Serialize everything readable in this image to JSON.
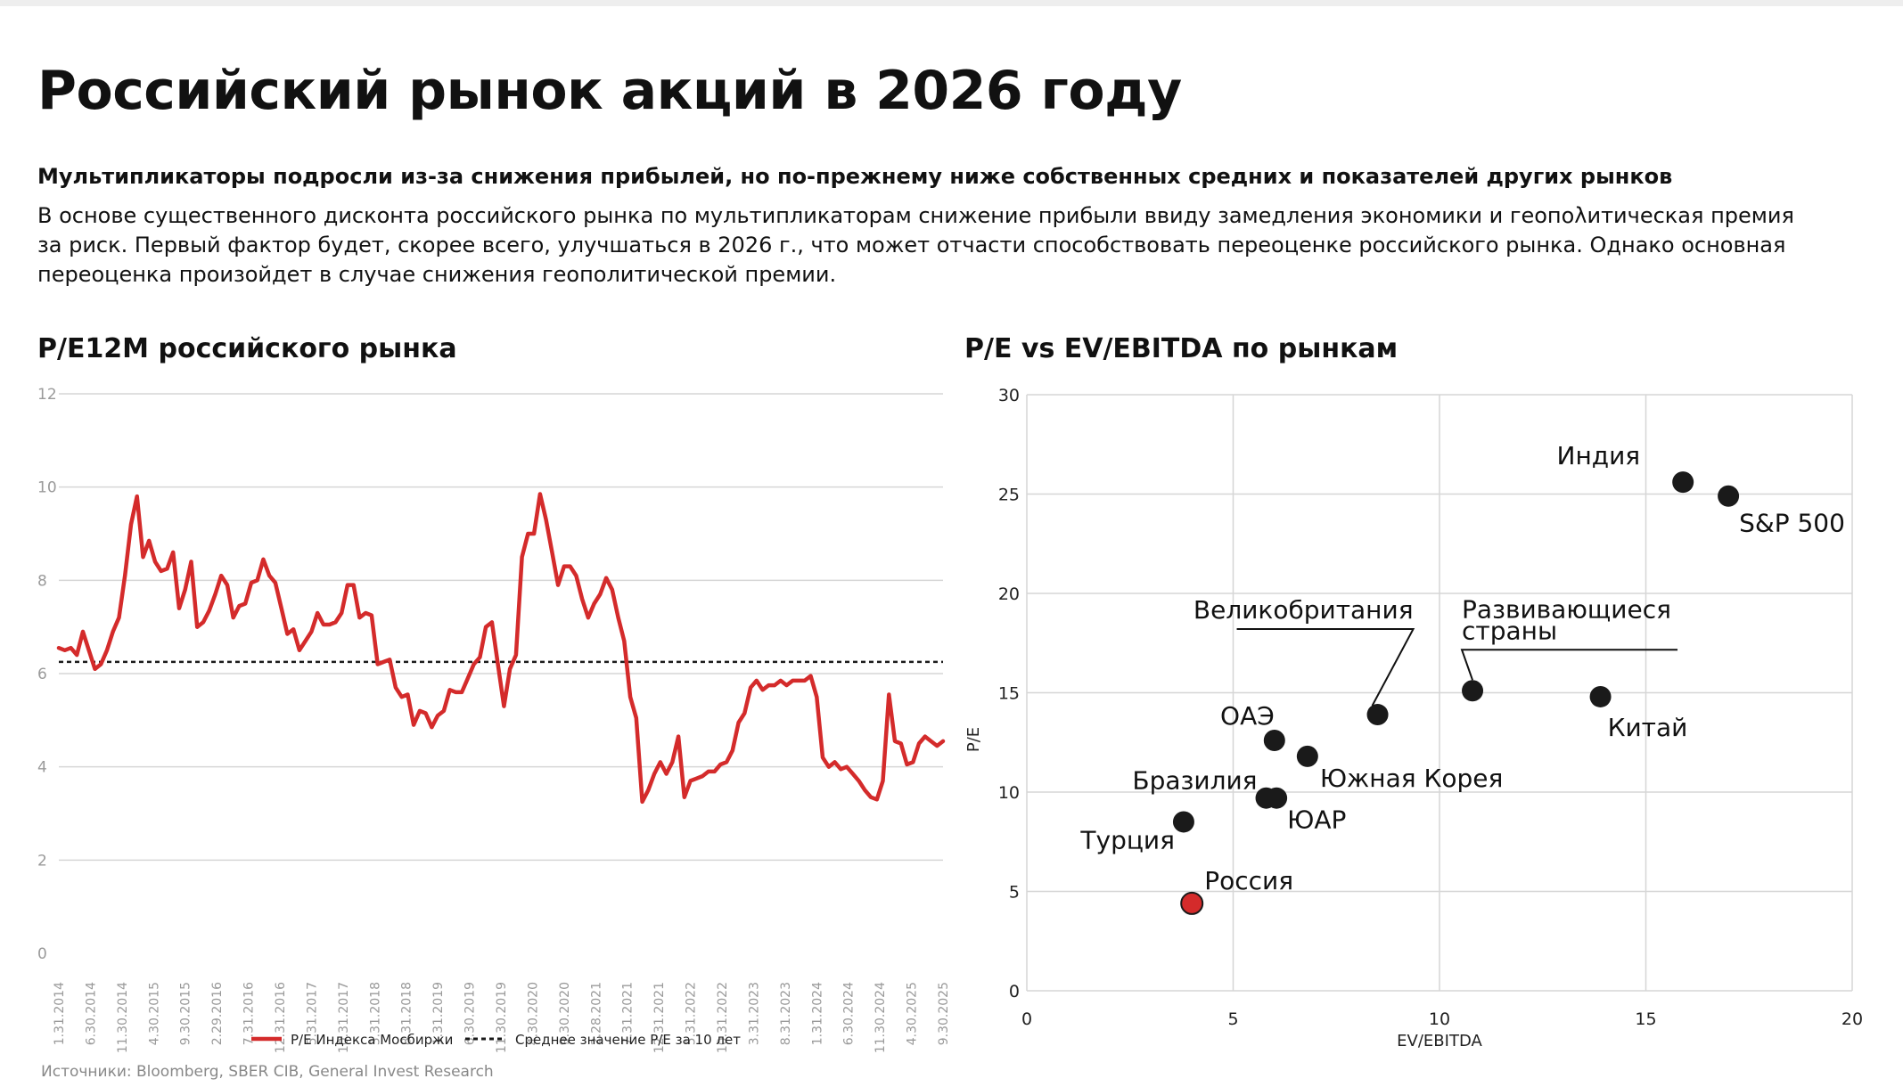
{
  "header": {
    "title": "Российский рынок акций в 2026 году",
    "subtitle": "Мультипликаторы подросли из-за снижения прибылей, но по-прежнему ниже собственных средних и показателей других рынков",
    "body_lines": [
      "В основе существенного дисконта российского рынка по мультипликаторам снижение прибыли ввиду замедления экономики и геопολитическая премия",
      "за риск. Первый фактор будет, скорее всего, улучшаться в 2026 г., что может отчасти способствовать переоценке российского рынка. Однако основная",
      "переоценка произойдет в случае снижения геополитической премии."
    ]
  },
  "colors": {
    "accent": "#d42b2b",
    "dot": "#1a1a1a",
    "grid": "#d6d6d6",
    "muted": "#888888"
  },
  "source": "Источники: Bloomberg, SBER CIB,  General Invest Research",
  "chart_data": [
    {
      "type": "line",
      "title": "P/E12M российского рынка",
      "ylim": [
        0,
        12
      ],
      "y_ticks": [
        "0",
        "2",
        "4",
        "6",
        "8",
        "10",
        "12"
      ],
      "grid": true,
      "legend_position": "bottom-center",
      "x_tick_labels": [
        "1.31.2014",
        "6.30.2014",
        "11.30.2014",
        "4.30.2015",
        "9.30.2015",
        "2.29.2016",
        "7.31.2016",
        "12.31.2016",
        "5.31.2017",
        "10.31.2017",
        "3.31.2018",
        "8.31.2018",
        "1.31.2019",
        "6.30.2019",
        "11.30.2019",
        "4.30.2020",
        "9.30.2020",
        "2.28.2021",
        "7.31.2021",
        "12.31.2021",
        "5.31.2022",
        "10.31.2022",
        "3.31.2023",
        "8.31.2023",
        "1.31.2024",
        "6.30.2024",
        "11.30.2024",
        "4.30.2025",
        "9.30.2025"
      ],
      "series": [
        {
          "name": "P/E Индекса Мосбиржи",
          "style": "solid",
          "color": "#d42b2b",
          "values": [
            6.55,
            6.5,
            6.55,
            6.4,
            6.9,
            6.5,
            6.1,
            6.2,
            6.5,
            6.9,
            7.2,
            8.1,
            9.2,
            9.8,
            8.5,
            8.85,
            8.4,
            8.2,
            8.25,
            8.6,
            7.4,
            7.8,
            8.4,
            7.0,
            7.1,
            7.35,
            7.7,
            8.1,
            7.9,
            7.2,
            7.45,
            7.5,
            7.95,
            8.0,
            8.45,
            8.1,
            7.95,
            7.4,
            6.85,
            6.95,
            6.5,
            6.7,
            6.9,
            7.3,
            7.05,
            7.05,
            7.1,
            7.3,
            7.9,
            7.9,
            7.2,
            7.3,
            7.25,
            6.2,
            6.25,
            6.3,
            5.7,
            5.5,
            5.55,
            4.9,
            5.2,
            5.15,
            4.85,
            5.1,
            5.2,
            5.65,
            5.6,
            5.6,
            5.9,
            6.2,
            6.35,
            7.0,
            7.1,
            6.2,
            5.3,
            6.1,
            6.4,
            8.5,
            9.0,
            9.0,
            9.85,
            9.3,
            8.6,
            7.9,
            8.3,
            8.3,
            8.1,
            7.6,
            7.2,
            7.5,
            7.7,
            8.05,
            7.8,
            7.2,
            6.7,
            5.5,
            5.05,
            3.25,
            3.5,
            3.85,
            4.1,
            3.85,
            4.1,
            4.65,
            3.35,
            3.7,
            3.75,
            3.8,
            3.9,
            3.9,
            4.05,
            4.1,
            4.35,
            4.95,
            5.15,
            5.7,
            5.85,
            5.65,
            5.75,
            5.75,
            5.85,
            5.75,
            5.85,
            5.85,
            5.85,
            5.95,
            5.5,
            4.2,
            4.0,
            4.1,
            3.95,
            4.0,
            3.85,
            3.7,
            3.5,
            3.35,
            3.3,
            3.7,
            5.55,
            4.55,
            4.5,
            4.05,
            4.1,
            4.5,
            4.65,
            4.55,
            4.45,
            4.55
          ]
        },
        {
          "name": "Среднее значение P/E за 10 лет",
          "style": "dashed",
          "color": "#1a1a1a",
          "value": 6.25
        }
      ]
    },
    {
      "type": "scatter",
      "title": "P/E vs EV/EBITDA по рынкам",
      "xlabel": "EV/EBITDA",
      "ylabel": "P/E",
      "xlim": [
        0,
        20
      ],
      "ylim": [
        0,
        30
      ],
      "x_ticks": [
        "0",
        "5",
        "10",
        "15",
        "20"
      ],
      "y_ticks": [
        "0",
        "5",
        "10",
        "15",
        "20",
        "25",
        "30"
      ],
      "grid": true,
      "points": [
        {
          "label": "Индия",
          "x": 15.9,
          "y": 25.6,
          "color": "#1a1a1a"
        },
        {
          "label": "S&P 500",
          "x": 17.0,
          "y": 24.9,
          "color": "#1a1a1a"
        },
        {
          "label": "Великобритания",
          "x": 8.5,
          "y": 13.9,
          "color": "#1a1a1a"
        },
        {
          "label_lines": [
            "Развивающиеся",
            "страны"
          ],
          "x": 10.8,
          "y": 15.1,
          "color": "#1a1a1a"
        },
        {
          "label": "Китай",
          "x": 13.9,
          "y": 14.8,
          "color": "#1a1a1a"
        },
        {
          "label": "ОАЭ",
          "x": 6.0,
          "y": 12.6,
          "color": "#1a1a1a"
        },
        {
          "label": "Южная Корея",
          "x": 6.8,
          "y": 11.8,
          "color": "#1a1a1a"
        },
        {
          "label": "Бразилия",
          "x": 5.8,
          "y": 9.7,
          "color": "#1a1a1a"
        },
        {
          "label": "ЮАР",
          "x": 6.05,
          "y": 9.7,
          "color": "#1a1a1a"
        },
        {
          "label": "Турция",
          "x": 3.8,
          "y": 8.5,
          "color": "#1a1a1a"
        },
        {
          "label": "Россия",
          "x": 4.0,
          "y": 4.4,
          "color": "#d42b2b"
        }
      ]
    }
  ]
}
